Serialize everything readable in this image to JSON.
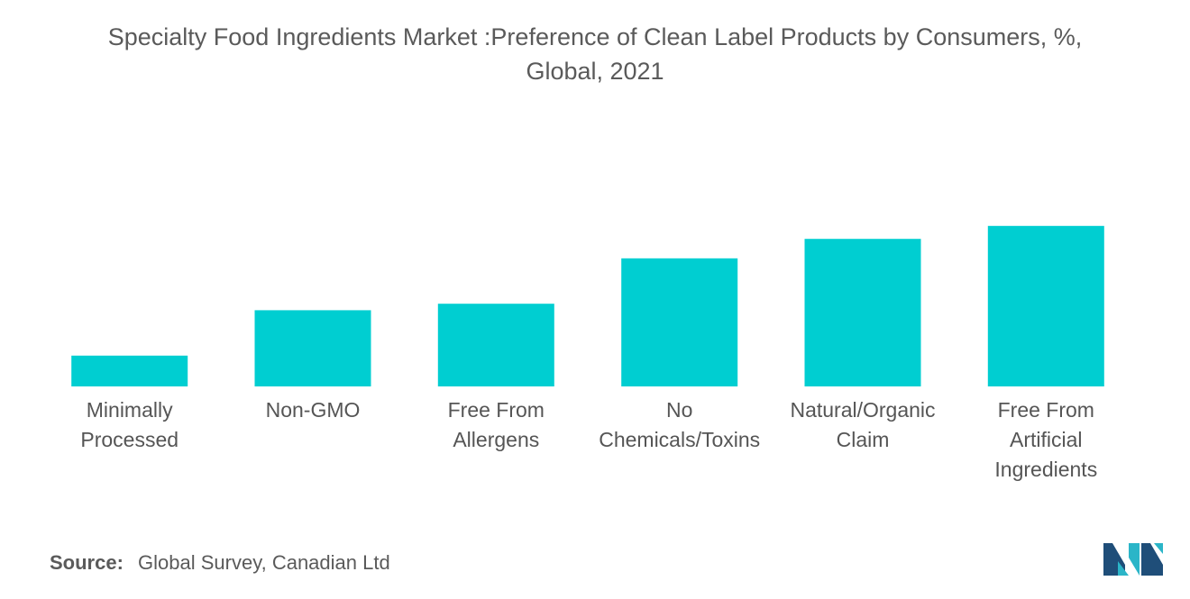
{
  "chart_data": {
    "type": "bar",
    "title": "Specialty Food Ingredients Market :Preference of Clean Label Products by Consumers, %, Global, 2021",
    "title_lines": [
      "Specialty Food Ingredients Market :Preference of Clean Label Products by Consumers, %,",
      "Global, 2021"
    ],
    "categories": [
      [
        "Minimally",
        "Processed"
      ],
      [
        "Non-GMO"
      ],
      [
        "Free From",
        "Allergens"
      ],
      [
        "No",
        "Chemicals/Toxins"
      ],
      [
        "Natural/Organic",
        "Claim"
      ],
      [
        "Free From",
        "Artificial",
        "Ingredients"
      ]
    ],
    "values": [
      19,
      47,
      51,
      79,
      91,
      99
    ],
    "ylim": [
      0,
      100
    ],
    "xlabel": "",
    "ylabel": "",
    "grid": false,
    "legend": "none",
    "bar_color": "#00CED1"
  },
  "source": {
    "label": "Source:",
    "text": "Global Survey, Canadian Ltd"
  },
  "logo": {
    "icon": "mordor-intelligence-logo-icon",
    "colors": [
      "#1F4E79",
      "#2BB5C8"
    ]
  }
}
